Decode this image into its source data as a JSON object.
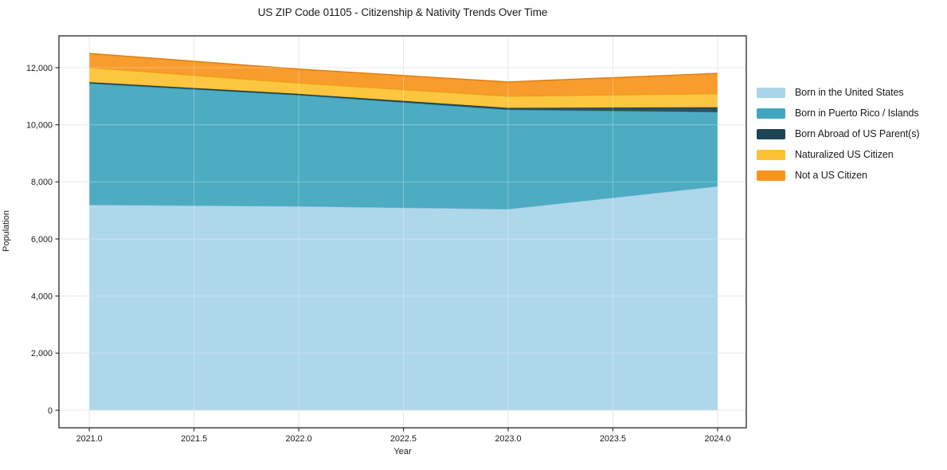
{
  "chart_data": {
    "type": "area",
    "stacked": true,
    "title": "US ZIP Code 01105 - Citizenship & Nativity Trends Over Time",
    "xlabel": "Year",
    "ylabel": "Population",
    "x": [
      2021,
      2022,
      2023,
      2024
    ],
    "series": [
      {
        "name": "Born in the United States",
        "color": "#a9d4e9",
        "edge": "#7ab9d9",
        "values": [
          7200,
          7150,
          7050,
          7850
        ]
      },
      {
        "name": "Born in Puerto Rico / Islands",
        "color": "#41a6bd",
        "edge": "#2d92a8",
        "values": [
          4250,
          3890,
          3480,
          2600
        ]
      },
      {
        "name": "Born Abroad of US Parent(s)",
        "color": "#1f4457",
        "edge": "#132f3d",
        "values": [
          40,
          40,
          60,
          160
        ]
      },
      {
        "name": "Naturalized US Citizen",
        "color": "#fdc233",
        "edge": "#e3a90f",
        "values": [
          510,
          380,
          410,
          480
        ]
      },
      {
        "name": "Not a US Citizen",
        "color": "#f7941e",
        "edge": "#dd7e0e",
        "values": [
          500,
          490,
          500,
          710
        ]
      }
    ],
    "stack_totals": [
      12500,
      11950,
      11500,
      11800
    ],
    "x_ticks": {
      "values": [
        2021.0,
        2021.5,
        2022.0,
        2022.5,
        2023.0,
        2023.5,
        2024.0
      ],
      "labels": [
        "2021.0",
        "2021.5",
        "2022.0",
        "2022.5",
        "2023.0",
        "2023.5",
        "2024.0"
      ]
    },
    "y_ticks": {
      "values": [
        0,
        2000,
        4000,
        6000,
        8000,
        10000,
        12000
      ],
      "labels": [
        "0",
        "2,000",
        "4,000",
        "6,000",
        "8,000",
        "10,000",
        "12,000"
      ]
    },
    "xlim": [
      2020.855,
      2024.137
    ],
    "ylim": [
      -615,
      13115
    ],
    "grid": true,
    "legend_position": "right-outside",
    "colors": {
      "background": "#ffffff",
      "grid": "#dedede",
      "overgrid": "rgba(255,255,255,0.30)",
      "spine": "#262626",
      "tick": "#262626",
      "text": "#1a1a1a"
    },
    "fill_opacity": 0.93
  }
}
